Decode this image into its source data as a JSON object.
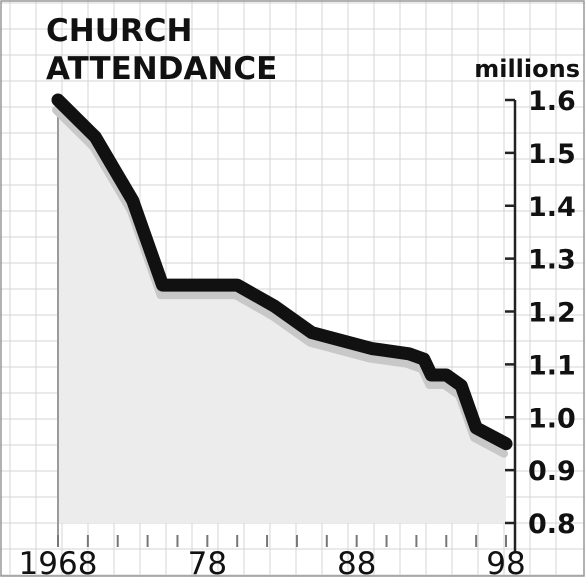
{
  "chart_data": {
    "type": "line",
    "title_lines": [
      "CHURCH",
      "ATTENDANCE"
    ],
    "unit_label": "millions",
    "xlabel": "",
    "ylabel": "",
    "x_tick_labels": [
      "1968",
      "78",
      "88",
      "98"
    ],
    "x_tick_values": [
      1968,
      1978,
      1988,
      1998
    ],
    "y_tick_labels": [
      "1.6",
      "1.5",
      "1.4",
      "1.3",
      "1.2",
      "1.1",
      "1.0",
      "0.9",
      "0.8"
    ],
    "y_tick_values": [
      1.6,
      1.5,
      1.4,
      1.3,
      1.2,
      1.1,
      1.0,
      0.9,
      0.8
    ],
    "xlim": [
      1968,
      1998
    ],
    "ylim": [
      0.8,
      1.6
    ],
    "grid": true,
    "legend": "none",
    "colors": {
      "line": "#111111",
      "area": "#ececec",
      "shadow": "#c8c8c8",
      "grid": "#d4d4d4"
    },
    "series": [
      {
        "x": [
          1968,
          1970.5,
          1973,
          1975,
          1979,
          1980,
          1982.5,
          1985,
          1989,
          1991.5,
          1992.5,
          1993,
          1994,
          1995,
          1996,
          1998
        ],
        "y": [
          1.6,
          1.53,
          1.41,
          1.25,
          1.25,
          1.25,
          1.21,
          1.16,
          1.13,
          1.12,
          1.11,
          1.08,
          1.08,
          1.06,
          0.98,
          0.95
        ]
      }
    ]
  }
}
